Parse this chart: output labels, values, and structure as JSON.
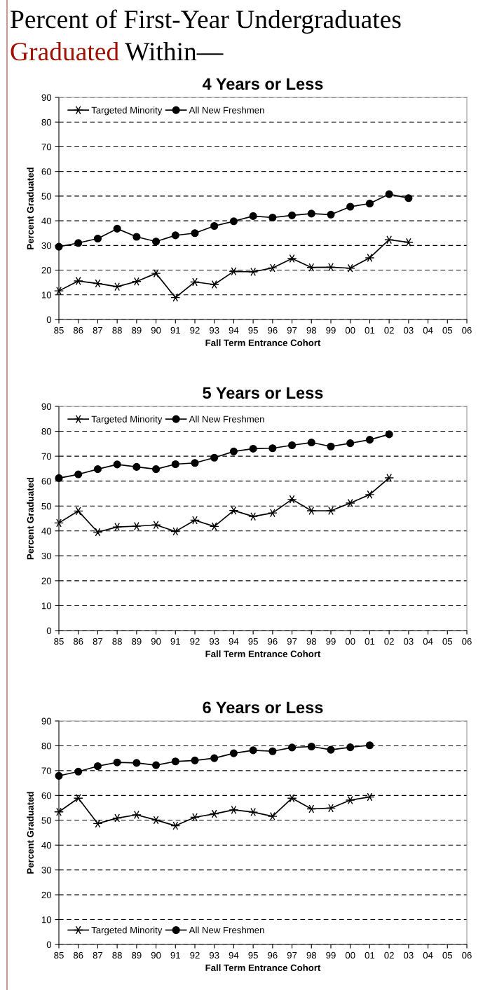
{
  "chart_data": [
    {
      "type": "line",
      "title": "4 Years or Less",
      "annotations": [
        "Percent of First-Year Undergraduates",
        "Graduated",
        "Within—"
      ],
      "xlabel": "Fall Term Entrance Cohort",
      "ylabel": "Percent Graduated",
      "categories": [
        "85",
        "86",
        "87",
        "88",
        "89",
        "90",
        "91",
        "92",
        "93",
        "94",
        "95",
        "96",
        "97",
        "98",
        "99",
        "00",
        "01",
        "02",
        "03",
        "04",
        "05",
        "06"
      ],
      "ylim": [
        0,
        90
      ],
      "yticks": [
        0,
        10,
        20,
        30,
        40,
        50,
        60,
        70,
        80,
        90
      ],
      "grid": "y",
      "legend": "top left",
      "line_style": "solid",
      "series": [
        {
          "name": "Targeted Minority",
          "color": "#000000",
          "marker": "cross",
          "values": [
            11.6,
            15.6,
            14.6,
            13.3,
            15.4,
            18.7,
            8.9,
            15.2,
            14.2,
            19.5,
            19.3,
            20.9,
            24.7,
            21.1,
            21.2,
            20.8,
            25.0,
            32.3,
            31.3,
            null,
            null,
            null
          ]
        },
        {
          "name": "All New Freshmen",
          "color": "#000000",
          "marker": "circle",
          "values": [
            29.5,
            31.0,
            32.8,
            36.8,
            33.5,
            31.6,
            34.1,
            35.0,
            37.9,
            39.8,
            41.9,
            41.3,
            42.2,
            42.9,
            42.5,
            45.7,
            47.0,
            50.8,
            49.2,
            null,
            null,
            null
          ]
        }
      ]
    },
    {
      "type": "line",
      "title": "5 Years or Less",
      "xlabel": "Fall Term Entrance Cohort",
      "ylabel": "Percent Graduated",
      "categories": [
        "85",
        "86",
        "87",
        "88",
        "89",
        "90",
        "91",
        "92",
        "93",
        "94",
        "95",
        "96",
        "97",
        "98",
        "99",
        "00",
        "01",
        "02",
        "03",
        "04",
        "05",
        "06"
      ],
      "ylim": [
        0,
        90
      ],
      "yticks": [
        0,
        10,
        20,
        30,
        40,
        50,
        60,
        70,
        80,
        90
      ],
      "grid": "y",
      "legend": "top left",
      "line_style": "solid",
      "series": [
        {
          "name": "Targeted Minority",
          "color": "#000000",
          "marker": "cross",
          "values": [
            43.2,
            48.0,
            39.5,
            41.6,
            41.9,
            42.4,
            39.8,
            44.3,
            41.8,
            48.2,
            45.8,
            47.2,
            52.7,
            48.1,
            48.1,
            51.2,
            54.6,
            61.3,
            null,
            null,
            null,
            null
          ]
        },
        {
          "name": "All New Freshmen",
          "color": "#000000",
          "marker": "circle",
          "values": [
            61.2,
            62.7,
            64.8,
            66.7,
            65.7,
            64.8,
            66.8,
            67.3,
            69.4,
            71.9,
            73.0,
            73.2,
            74.4,
            75.5,
            73.9,
            75.2,
            76.6,
            78.8,
            null,
            null,
            null,
            null
          ]
        }
      ]
    },
    {
      "type": "line",
      "title": "6 Years or Less",
      "xlabel": "Fall Term Entrance Cohort",
      "ylabel": "Percent Graduated",
      "categories": [
        "85",
        "86",
        "87",
        "88",
        "89",
        "90",
        "91",
        "92",
        "93",
        "94",
        "95",
        "96",
        "97",
        "98",
        "99",
        "00",
        "01",
        "02",
        "03",
        "04",
        "05",
        "06"
      ],
      "ylim": [
        0,
        90
      ],
      "yticks": [
        0,
        10,
        20,
        30,
        40,
        50,
        60,
        70,
        80,
        90
      ],
      "grid": "y",
      "legend": "bottom left",
      "line_style": "solid",
      "series": [
        {
          "name": "Targeted Minority",
          "color": "#000000",
          "marker": "cross",
          "values": [
            53.4,
            58.9,
            48.7,
            50.9,
            52.2,
            50.1,
            47.8,
            51.2,
            52.6,
            54.2,
            53.3,
            51.6,
            58.9,
            54.6,
            54.9,
            58.1,
            59.4,
            null,
            null,
            null,
            null,
            null
          ]
        },
        {
          "name": "All New Freshmen",
          "color": "#000000",
          "marker": "circle",
          "values": [
            67.9,
            69.6,
            71.8,
            73.3,
            73.1,
            72.2,
            73.7,
            74.1,
            75.0,
            77.0,
            78.2,
            77.8,
            79.3,
            79.7,
            78.4,
            79.4,
            80.2,
            null,
            null,
            null,
            null,
            null
          ]
        }
      ]
    }
  ]
}
